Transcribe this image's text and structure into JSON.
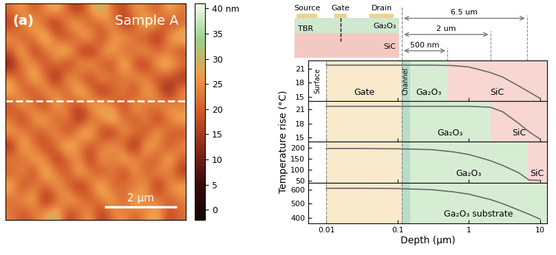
{
  "chart_data": [
    {
      "type": "heatmap",
      "panel_label": "(a)",
      "title": "Sample A",
      "image_size": 5,
      "profile_line_y": 2.75,
      "scale_bar": {
        "label": "2 µm",
        "length": 2
      },
      "cells": [
        [
          22,
          28,
          18,
          25,
          31,
          20,
          14,
          26,
          33,
          21,
          17,
          27,
          24,
          19,
          30,
          23
        ],
        [
          15,
          24,
          30,
          19,
          12,
          27,
          29,
          18,
          22,
          28,
          13,
          20,
          32,
          26,
          16,
          21
        ],
        [
          27,
          19,
          23,
          34,
          21,
          16,
          24,
          31,
          15,
          25,
          29,
          22,
          18,
          12,
          27,
          33
        ],
        [
          20,
          31,
          14,
          22,
          28,
          33,
          18,
          11,
          26,
          30,
          19,
          24,
          28,
          21,
          23,
          17
        ],
        [
          9,
          25,
          27,
          17,
          24,
          13,
          26,
          29,
          20,
          16,
          34,
          18,
          14,
          29,
          31,
          24
        ],
        [
          26,
          18,
          32,
          23,
          10,
          29,
          21,
          15,
          28,
          23,
          21,
          27,
          25,
          17,
          20,
          13
        ],
        [
          30,
          22,
          16,
          28,
          25,
          19,
          33,
          24,
          12,
          19,
          26,
          14,
          30,
          23,
          8,
          27
        ],
        [
          17,
          29,
          24,
          13,
          31,
          22,
          17,
          27,
          30,
          24,
          15,
          31,
          20,
          26,
          28,
          22
        ],
        [
          23,
          14,
          27,
          30,
          18,
          26,
          11,
          20,
          25,
          34,
          22,
          18,
          27,
          13,
          24,
          30
        ],
        [
          28,
          25,
          19,
          21,
          27,
          15,
          28,
          32,
          17,
          13,
          27,
          24,
          16,
          29,
          21,
          18
        ],
        [
          12,
          31,
          23,
          16,
          22,
          33,
          24,
          19,
          23,
          28,
          20,
          10,
          31,
          25,
          17,
          26
        ],
        [
          25,
          20,
          29,
          26,
          14,
          21,
          27,
          13,
          29,
          21,
          31,
          25,
          22,
          18,
          32,
          20
        ],
        [
          19,
          27,
          15,
          32,
          24,
          18,
          30,
          25,
          16,
          26,
          14,
          28,
          19,
          27,
          23,
          15
        ],
        [
          31,
          16,
          25,
          20,
          28,
          23,
          12,
          22,
          33,
          19,
          24,
          21,
          29,
          11,
          26,
          29
        ],
        [
          21,
          26,
          30,
          11,
          19,
          29,
          26,
          18,
          24,
          30,
          17,
          33,
          23,
          25,
          20,
          24
        ],
        [
          24,
          18,
          22,
          27,
          33,
          16,
          21,
          28,
          14,
          23,
          27,
          19,
          26,
          30,
          16,
          22
        ]
      ],
      "colorbar_range": [
        -2,
        41
      ],
      "colorbar_ticks": [
        0,
        5,
        10,
        15,
        20,
        25,
        30,
        35,
        {
          "value": 40,
          "label": "40 nm"
        }
      ],
      "tick_labels": false
    },
    {
      "type": "line",
      "x": [
        0.01,
        0.03,
        0.1,
        0.3,
        0.6,
        1,
        2,
        3,
        5,
        7,
        10
      ],
      "values": [
        21.8,
        21.8,
        21.8,
        21.8,
        21.7,
        21.4,
        20.2,
        19.2,
        17.3,
        16.0,
        14.6
      ],
      "color": "#6e6e6e",
      "xlim": [
        0.0056,
        12.5
      ],
      "xticks": [
        0.01,
        0.1,
        1,
        10
      ],
      "ylim": [
        14,
        22.8
      ],
      "yticks": [
        15,
        18,
        21
      ],
      "tick_labels": "y",
      "boundaries": [
        0.01,
        0.115
      ],
      "regions": [
        {
          "label": "Surface",
          "start": 0.0056,
          "end": 0.01,
          "color": "#ffffff"
        },
        {
          "label": "Gate",
          "start": 0.01,
          "end": 0.115,
          "color": "#f8eacb"
        },
        {
          "label": "Channel",
          "start": 0.115,
          "end": 0.15,
          "color": "#b7dcc8"
        },
        {
          "label": "Ga₂O₃",
          "start": 0.15,
          "end": 0.5,
          "color": "#d6edd4"
        },
        {
          "label": "SiC",
          "start": 0.5,
          "end": 12.5,
          "color": "#f8d7d3"
        }
      ]
    },
    {
      "type": "line",
      "x": [
        0.01,
        0.03,
        0.1,
        0.3,
        0.6,
        1,
        2,
        3,
        5,
        7,
        10
      ],
      "values": [
        21.7,
        21.7,
        21.7,
        21.7,
        21.7,
        21.7,
        21.5,
        20.5,
        18.0,
        16.2,
        14.6
      ],
      "color": "#6e6e6e",
      "xlim": [
        0.0056,
        12.5
      ],
      "xticks": [
        0.01,
        0.1,
        1,
        10
      ],
      "ylim": [
        14,
        22.8
      ],
      "yticks": [
        15,
        18,
        21
      ],
      "tick_labels": "y",
      "boundaries": [
        0.01,
        0.115
      ],
      "regions": [
        {
          "label": null,
          "start": 0.01,
          "end": 0.115,
          "color": "#f8eacb"
        },
        {
          "label": null,
          "start": 0.115,
          "end": 0.15,
          "color": "#b7dcc8"
        },
        {
          "label": "Ga₂O₃",
          "start": 0.15,
          "end": 2,
          "color": "#d6edd4"
        },
        {
          "label": "SiC",
          "start": 2,
          "end": 12.5,
          "color": "#f8d7d3"
        }
      ]
    },
    {
      "type": "line",
      "x": [
        0.01,
        0.03,
        0.1,
        0.3,
        0.6,
        1,
        2,
        3,
        5,
        7,
        10
      ],
      "values": [
        195,
        195,
        194,
        190,
        180,
        168,
        140,
        118,
        85,
        52,
        50
      ],
      "color": "#6e6e6e",
      "xlim": [
        0.0056,
        12.5
      ],
      "xticks": [
        0.01,
        0.1,
        1,
        10
      ],
      "ylim": [
        40,
        225
      ],
      "yticks": [
        50,
        100,
        150,
        200
      ],
      "tick_labels": "y",
      "boundaries": [
        0.01,
        0.115
      ],
      "regions": [
        {
          "label": null,
          "start": 0.01,
          "end": 0.115,
          "color": "#f8eacb"
        },
        {
          "label": null,
          "start": 0.115,
          "end": 0.15,
          "color": "#b7dcc8"
        },
        {
          "label": "Ga₂O₃",
          "start": 0.15,
          "end": 6.5,
          "color": "#d6edd4"
        },
        {
          "label": "SiC",
          "start": 6.5,
          "end": 12.5,
          "color": "#f8d7d3"
        }
      ]
    },
    {
      "type": "line",
      "x": [
        0.01,
        0.03,
        0.1,
        0.3,
        0.6,
        1,
        2,
        3,
        5,
        7,
        10
      ],
      "values": [
        610,
        610,
        608,
        600,
        585,
        568,
        530,
        500,
        455,
        425,
        390
      ],
      "color": "#6e6e6e",
      "xlim": [
        0.0056,
        12.5
      ],
      "xticks": [
        0.01,
        0.1,
        1,
        10
      ],
      "ylim": [
        360,
        650
      ],
      "yticks": [
        400,
        500,
        600
      ],
      "boundaries": [
        0.01,
        0.115
      ],
      "xlabel": "Depth (μm)",
      "regions": [
        {
          "label": null,
          "start": 0.01,
          "end": 0.115,
          "color": "#f8eacb"
        },
        {
          "label": null,
          "start": 0.115,
          "end": 0.15,
          "color": "#b7dcc8"
        },
        {
          "label": "Ga₂O₃ substrate",
          "start": 0.15,
          "end": 12.5,
          "color": "#d6edd4"
        }
      ]
    }
  ],
  "shared_ylabel": "Temperature rise (°C)",
  "schematic": {
    "contacts": [
      "Source",
      "Gate",
      "Drain"
    ],
    "layers": [
      {
        "label": "Ga₂O₃",
        "color": "#cfe8cf"
      },
      {
        "label": "SiC",
        "color": "#f4c9c4"
      }
    ],
    "interface_label": "TBR",
    "dimensions": [
      {
        "label": "6.5 um",
        "start": 0.115,
        "end": 6.5
      },
      {
        "label": "2 um",
        "start": 0.115,
        "end": 2
      },
      {
        "label": "500 nm",
        "start": 0.115,
        "end": 0.5
      }
    ]
  }
}
